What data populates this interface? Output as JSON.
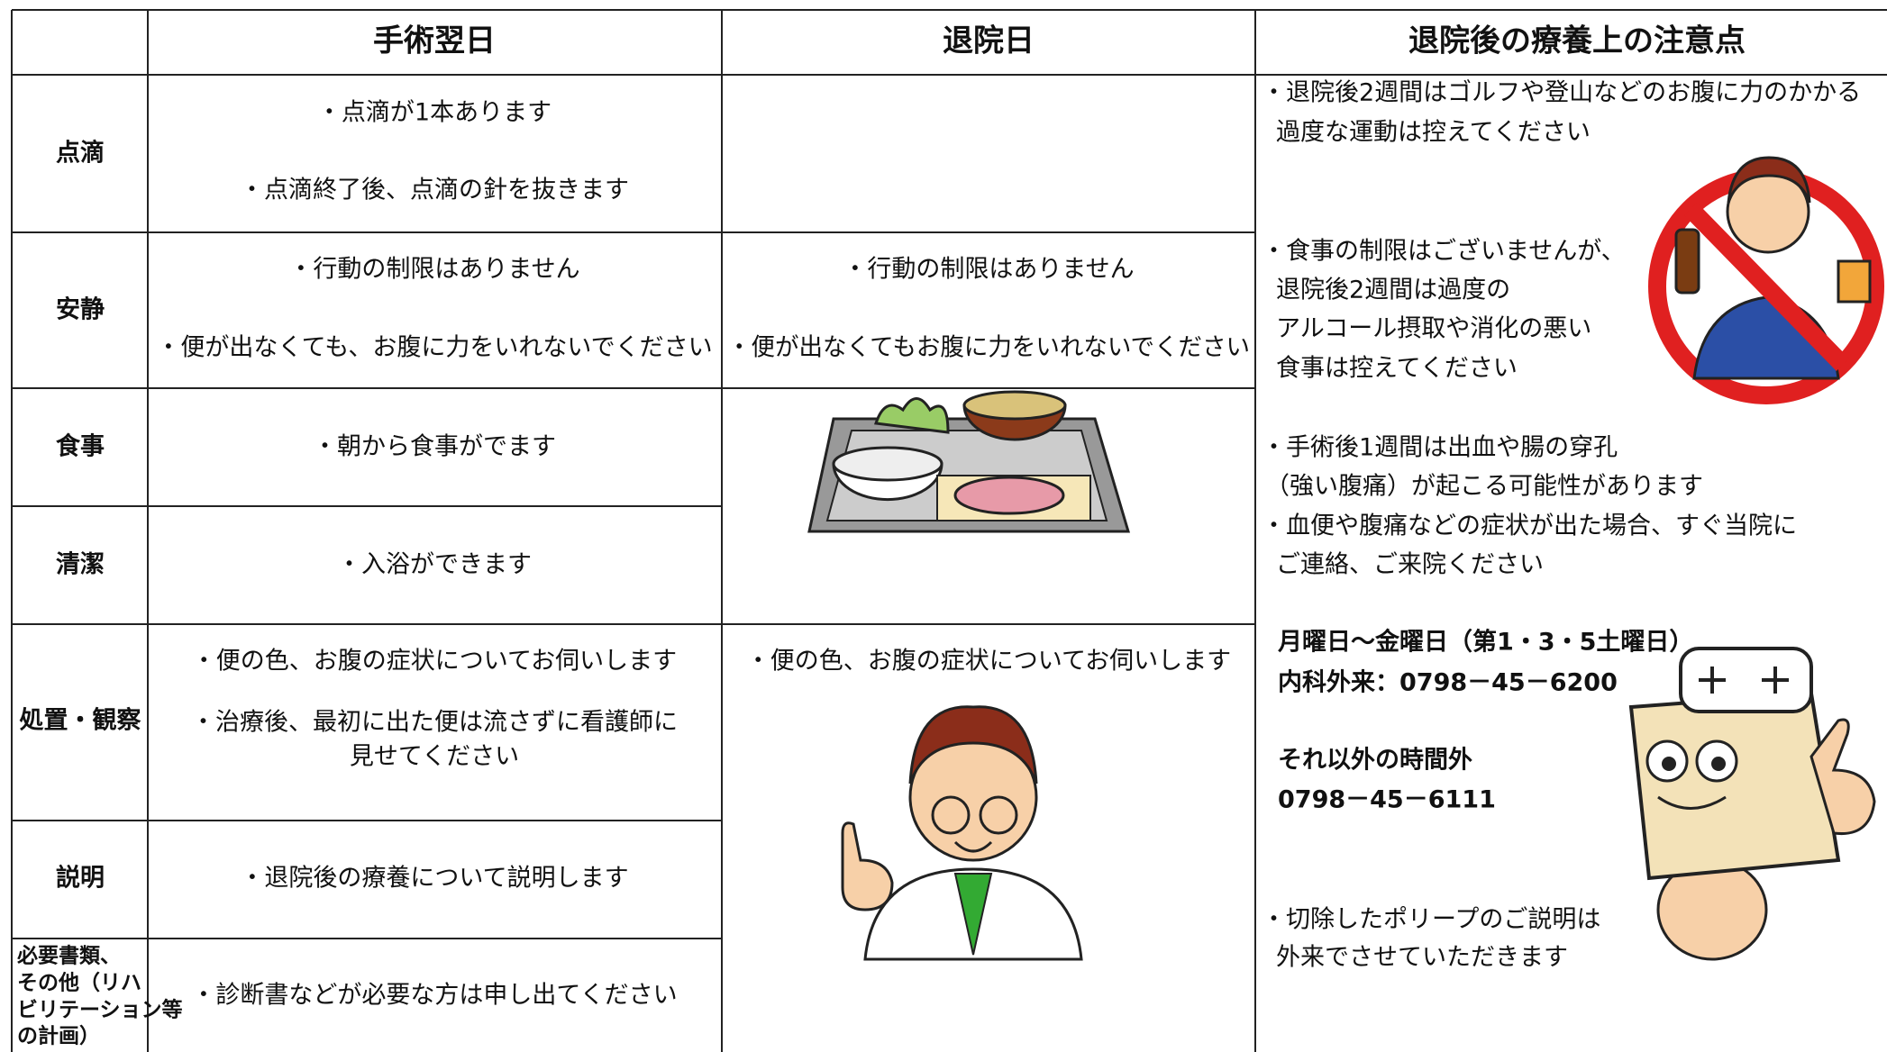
{
  "header": {
    "columns": [
      "手術翌日",
      "退院日",
      "退院後の療養上の注意点"
    ]
  },
  "rows": [
    {
      "label": "点滴",
      "day_after": [
        "・点滴が1本あります",
        "・点滴終了後、点滴の針を抜きます"
      ],
      "discharge": []
    },
    {
      "label": "安静",
      "day_after": [
        "・行動の制限はありません",
        "・便が出なくても、お腹に力をいれないでください"
      ],
      "discharge": [
        "・行動の制限はありません",
        "・便が出なくてもお腹に力をいれないでください"
      ]
    },
    {
      "label": "食事",
      "day_after": [
        "・朝から食事がでます"
      ],
      "discharge": []
    },
    {
      "label": "清潔",
      "day_after": [
        "・入浴ができます"
      ],
      "discharge": []
    },
    {
      "label": "処置・観察",
      "day_after": [
        "・便の色、お腹の症状についてお伺いします",
        "・治療後、最初に出た便は流さずに看護師に",
        "見せてください"
      ],
      "discharge": [
        "・便の色、お腹の症状についてお伺いします"
      ]
    },
    {
      "label": "説明",
      "day_after": [
        "・退院後の療養について説明します"
      ],
      "discharge": []
    },
    {
      "label": [
        "必要書類、",
        "その他（リハ",
        "ビリテーション等",
        "の計画）"
      ],
      "day_after": [
        "・診断書などが必要な方は申し出てください"
      ],
      "discharge": []
    }
  ],
  "notes": [
    [
      "・退院後2週間はゴルフや登山などのお腹に力のかかる",
      "過度な運動は控えてください"
    ],
    [
      "・食事の制限はございませんが、",
      "退院後2週間は過度の",
      "アルコール摂取や消化の悪い",
      "食事は控えてください"
    ],
    [
      "・手術後1週間は出血や腸の穿孔",
      "（強い腹痛）が起こる可能性があります"
    ],
    [
      "・血便や腹痛などの症状が出た場合、すぐ当院に",
      "ご連絡、ご来院ください"
    ],
    [
      "月曜日～金曜日（第1・3・5土曜日）",
      "内科外来：0798－45－6200"
    ],
    [
      "それ以外の時間外",
      "0798－45－6111"
    ],
    [
      "・切除したポリープのご説明は",
      "外来でさせていただきます"
    ]
  ]
}
